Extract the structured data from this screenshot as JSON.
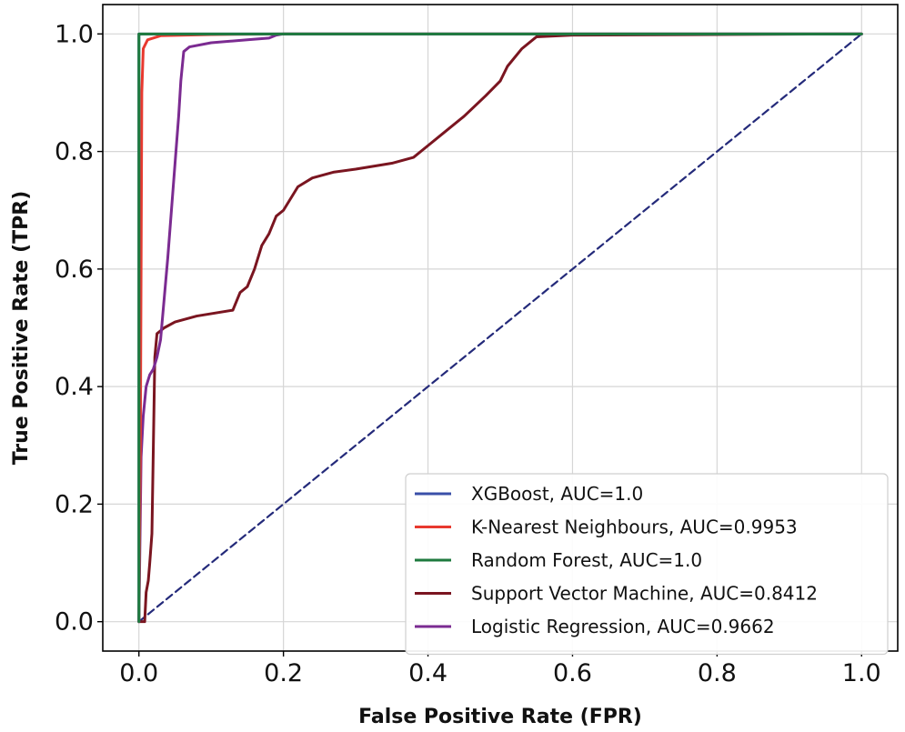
{
  "chart_data": {
    "type": "line",
    "title": "",
    "xlabel": "False Positive Rate (FPR)",
    "ylabel": "True Positive Rate (TPR)",
    "xlim": [
      -0.05,
      1.05
    ],
    "ylim": [
      -0.05,
      1.05
    ],
    "grid": true,
    "legend_position": "bottom-right",
    "x_ticks": [
      0.0,
      0.2,
      0.4,
      0.6,
      0.8,
      1.0
    ],
    "x_tick_labels": [
      "0.0",
      "0.2",
      "0.4",
      "0.6",
      "0.8",
      "1.0"
    ],
    "y_ticks": [
      0.0,
      0.2,
      0.4,
      0.6,
      0.8,
      1.0
    ],
    "y_tick_labels": [
      "0.0",
      "0.2",
      "0.4",
      "0.6",
      "0.8",
      "1.0"
    ],
    "series": [
      {
        "name": "XGBoost, AUC=1.0",
        "color": "#3a4fa8",
        "dashed": false,
        "points": [
          [
            0,
            0
          ],
          [
            0,
            1
          ],
          [
            1,
            1
          ]
        ]
      },
      {
        "name": "K-Nearest Neighbours, AUC=0.9953",
        "color": "#e8392f",
        "dashed": false,
        "points": [
          [
            0,
            0
          ],
          [
            0.002,
            0.3
          ],
          [
            0.004,
            0.9
          ],
          [
            0.006,
            0.975
          ],
          [
            0.012,
            0.99
          ],
          [
            0.03,
            0.997
          ],
          [
            0.1,
            0.999
          ],
          [
            0.2,
            1.0
          ],
          [
            1,
            1
          ]
        ]
      },
      {
        "name": "Random Forest, AUC=1.0",
        "color": "#1e7a3e",
        "dashed": false,
        "points": [
          [
            0,
            0
          ],
          [
            0,
            1
          ],
          [
            1,
            1
          ]
        ]
      },
      {
        "name": "Support Vector Machine, AUC=0.8412",
        "color": "#7a1520",
        "dashed": false,
        "points": [
          [
            0,
            0
          ],
          [
            0.008,
            0.0
          ],
          [
            0.01,
            0.05
          ],
          [
            0.013,
            0.07
          ],
          [
            0.015,
            0.1
          ],
          [
            0.018,
            0.15
          ],
          [
            0.02,
            0.3
          ],
          [
            0.022,
            0.45
          ],
          [
            0.025,
            0.49
          ],
          [
            0.035,
            0.5
          ],
          [
            0.05,
            0.51
          ],
          [
            0.08,
            0.52
          ],
          [
            0.13,
            0.53
          ],
          [
            0.14,
            0.56
          ],
          [
            0.15,
            0.57
          ],
          [
            0.16,
            0.6
          ],
          [
            0.17,
            0.64
          ],
          [
            0.18,
            0.66
          ],
          [
            0.19,
            0.69
          ],
          [
            0.2,
            0.7
          ],
          [
            0.22,
            0.74
          ],
          [
            0.24,
            0.755
          ],
          [
            0.27,
            0.765
          ],
          [
            0.3,
            0.77
          ],
          [
            0.35,
            0.78
          ],
          [
            0.38,
            0.79
          ],
          [
            0.4,
            0.81
          ],
          [
            0.42,
            0.83
          ],
          [
            0.45,
            0.86
          ],
          [
            0.48,
            0.895
          ],
          [
            0.5,
            0.92
          ],
          [
            0.51,
            0.945
          ],
          [
            0.53,
            0.975
          ],
          [
            0.55,
            0.995
          ],
          [
            0.6,
            0.998
          ],
          [
            1,
            1
          ]
        ]
      },
      {
        "name": "Logistic Regression, AUC=0.9662",
        "color": "#7b2b91",
        "dashed": false,
        "points": [
          [
            0,
            0
          ],
          [
            0.003,
            0.28
          ],
          [
            0.006,
            0.35
          ],
          [
            0.01,
            0.4
          ],
          [
            0.015,
            0.42
          ],
          [
            0.02,
            0.43
          ],
          [
            0.025,
            0.45
          ],
          [
            0.03,
            0.48
          ],
          [
            0.035,
            0.55
          ],
          [
            0.04,
            0.62
          ],
          [
            0.045,
            0.7
          ],
          [
            0.05,
            0.78
          ],
          [
            0.055,
            0.86
          ],
          [
            0.058,
            0.92
          ],
          [
            0.062,
            0.97
          ],
          [
            0.07,
            0.978
          ],
          [
            0.1,
            0.985
          ],
          [
            0.15,
            0.99
          ],
          [
            0.18,
            0.993
          ],
          [
            0.19,
            0.998
          ],
          [
            0.2,
            1.0
          ],
          [
            1,
            1
          ]
        ]
      },
      {
        "name": "",
        "color": "#242a7a",
        "dashed": true,
        "points": [
          [
            0,
            0
          ],
          [
            1,
            1
          ]
        ]
      }
    ]
  }
}
